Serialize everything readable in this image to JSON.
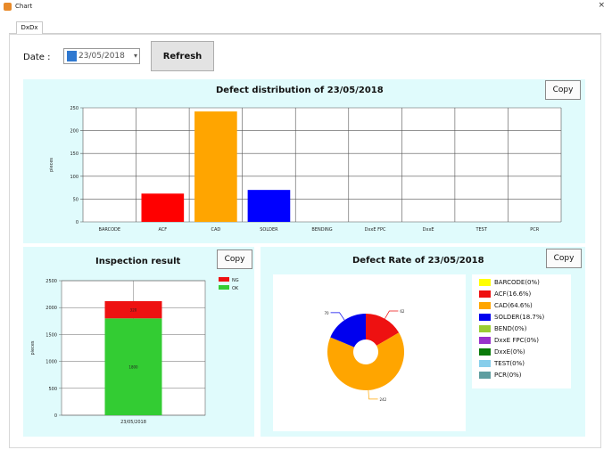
{
  "window": {
    "title": "Chart"
  },
  "tabs": [
    {
      "label": "DxDx"
    }
  ],
  "toolbar": {
    "date_label": "Date :",
    "date_value": "23/05/2018",
    "refresh_label": "Refresh"
  },
  "defect_chart": {
    "title": "Defect distribution of 23/05/2018",
    "copy_label": "Copy",
    "ylabel": "pieces",
    "colors": [
      "#ff0000",
      "#ffa500",
      "#0000ff"
    ],
    "chart_data": {
      "type": "bar",
      "title": "Defect distribution of 23/05/2018",
      "ylabel": "pieces",
      "ylim": [
        0,
        250
      ],
      "yticks": [
        0,
        50,
        100,
        150,
        200,
        250
      ],
      "categories": [
        "BARCODE",
        "ACF",
        "CAD",
        "SOLDER",
        "BENDING",
        "DxxE FPC",
        "DxxE",
        "TEST",
        "PCR"
      ],
      "values": [
        0,
        62,
        242,
        70,
        0,
        0,
        0,
        0,
        0
      ],
      "bar_colors": [
        "#ffff00",
        "#ff0000",
        "#ffa500",
        "#0000ff",
        "#9acd32",
        "#9932cc",
        "#006400",
        "#87ceeb",
        "#5f9ea0"
      ],
      "grid": true
    }
  },
  "inspection_chart": {
    "title": "Inspection result",
    "copy_label": "Copy",
    "ylabel": "pieces",
    "chart_data": {
      "type": "bar",
      "title": "Inspection result",
      "ylabel": "pieces",
      "ylim": [
        0,
        2500
      ],
      "yticks": [
        0,
        500,
        1000,
        1500,
        2000,
        2500
      ],
      "categories": [
        "23/05/2018"
      ],
      "series": [
        {
          "name": "OK",
          "values": [
            1800
          ],
          "color": "#33cc33"
        },
        {
          "name": "NG",
          "values": [
            320
          ],
          "color": "#ee1111"
        }
      ],
      "stacked": true,
      "grid": true
    },
    "legend": [
      {
        "label": "NG",
        "color": "#ee1111"
      },
      {
        "label": "OK",
        "color": "#33cc33"
      }
    ]
  },
  "rate_chart": {
    "title": "Defect Rate of 23/05/2018",
    "copy_label": "Copy",
    "chart_data": {
      "type": "pie",
      "title": "Defect Rate of 23/05/2018",
      "categories": [
        "BARCODE(0%)",
        "ACF(16.6%)",
        "CAD(64.6%)",
        "SOLDER(18.7%)",
        "BEND(0%)",
        "DxxE FPC(0%)",
        "DxxE(0%)",
        "TEST(0%)",
        "PCR(0%)"
      ],
      "values": [
        0,
        62,
        242,
        70,
        0,
        0,
        0,
        0,
        0
      ],
      "colors": [
        "#ffff00",
        "#ee1111",
        "#ffa500",
        "#0000ee",
        "#9acd32",
        "#9932cc",
        "#0a7a0a",
        "#87ceeb",
        "#5f9ea0"
      ],
      "donut": true,
      "legend_position": "right"
    }
  }
}
